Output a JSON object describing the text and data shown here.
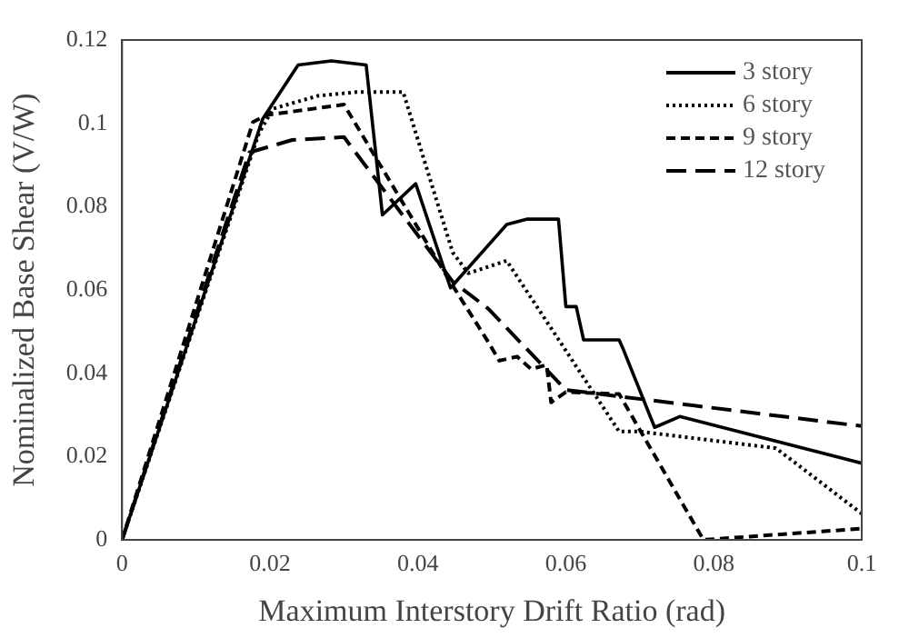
{
  "chart_data": {
    "type": "line",
    "xlabel": "Maximum Interstory Drift Ratio (rad)",
    "ylabel": "Nominalized Base Shear (V/W)",
    "xlim": [
      0,
      0.1
    ],
    "xticks": [
      0,
      0.02,
      0.04,
      0.06,
      0.08,
      0.1
    ],
    "ylim": [
      0,
      0.12
    ],
    "yticks": [
      0,
      0.02,
      0.04,
      0.06,
      0.08,
      0.1,
      0.12
    ],
    "grid": false,
    "legend": "top right",
    "marker": "none",
    "series": [
      {
        "name": "3 story",
        "color": "#000000",
        "line_style": "solid",
        "x": [
          0,
          0.019,
          0.0238,
          0.0283,
          0.033,
          0.0352,
          0.0397,
          0.0444,
          0.052,
          0.0548,
          0.059,
          0.06,
          0.0614,
          0.0624,
          0.0672,
          0.0677,
          0.072,
          0.0754,
          0.1
        ],
        "values": [
          0,
          0.101,
          0.114,
          0.115,
          0.114,
          0.078,
          0.0855,
          0.0605,
          0.0757,
          0.077,
          0.077,
          0.056,
          0.056,
          0.048,
          0.048,
          0.046,
          0.027,
          0.0296,
          0.0184
        ]
      },
      {
        "name": "6 story",
        "color": "#000000",
        "line_style": "dotted",
        "x": [
          0,
          0.0185,
          0.0204,
          0.0265,
          0.0317,
          0.038,
          0.0447,
          0.0468,
          0.052,
          0.0672,
          0.07,
          0.0884,
          0.1
        ],
        "values": [
          0,
          0.0976,
          0.1035,
          0.1066,
          0.1075,
          0.1075,
          0.069,
          0.064,
          0.067,
          0.026,
          0.026,
          0.022,
          0.0063
        ]
      },
      {
        "name": "9 story",
        "color": "#000000",
        "line_style": "dashed",
        "x": [
          0,
          0.0177,
          0.0196,
          0.03,
          0.044,
          0.0495,
          0.051,
          0.0534,
          0.0553,
          0.0574,
          0.058,
          0.06,
          0.0672,
          0.0786,
          0.1
        ],
        "values": [
          0,
          0.1003,
          0.102,
          0.1045,
          0.063,
          0.0475,
          0.043,
          0.044,
          0.041,
          0.042,
          0.033,
          0.0355,
          0.035,
          0,
          0.0027
        ]
      },
      {
        "name": "12 story",
        "color": "#000000",
        "line_style": "longdash",
        "x": [
          0,
          0.0172,
          0.023,
          0.03,
          0.0447,
          0.0495,
          0.06,
          0.1
        ],
        "values": [
          0,
          0.093,
          0.096,
          0.0967,
          0.062,
          0.0555,
          0.036,
          0.0273
        ]
      }
    ]
  }
}
